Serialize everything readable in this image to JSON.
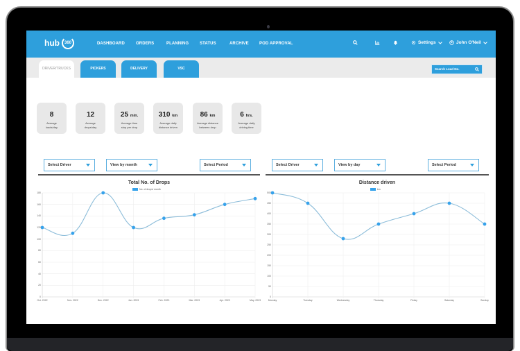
{
  "app": {
    "logo_text": "hub",
    "logo_badge": "360"
  },
  "nav": {
    "items": [
      {
        "label": "DASHBOARD"
      },
      {
        "label": "ORDERS"
      },
      {
        "label": "PLANNING"
      },
      {
        "label": "STATUS"
      },
      {
        "label": "ARCHIVE"
      },
      {
        "label": "POD APPROVAL"
      }
    ],
    "icons": [
      "search-icon",
      "chart-icon",
      "bell-icon"
    ],
    "settings_label": "Settings",
    "user_name": "John O'Neil"
  },
  "tabs": [
    {
      "label": "DRIVER/TRUCKS",
      "active": true
    },
    {
      "label": "PICKERS",
      "active": false
    },
    {
      "label": "DELIVERY",
      "active": false
    },
    {
      "label": "VSC",
      "active": false
    }
  ],
  "search": {
    "placeholder": "Search Load No."
  },
  "kpis": [
    {
      "value": "8",
      "unit": "",
      "label_line1": "Average",
      "label_line2": "loads/day"
    },
    {
      "value": "12",
      "unit": "",
      "label_line1": "Average",
      "label_line2": "drops/day"
    },
    {
      "value": "25",
      "unit": "min.",
      "label_line1": "Average time",
      "label_line2": "stop per drop"
    },
    {
      "value": "310",
      "unit": "km",
      "label_line1": "Average daily",
      "label_line2": "distance driven"
    },
    {
      "value": "86",
      "unit": "km",
      "label_line1": "Average distance",
      "label_line2": "between drop"
    },
    {
      "value": "6",
      "unit": "hrs.",
      "label_line1": "Average daily",
      "label_line2": "driving time"
    }
  ],
  "filters": {
    "left": {
      "driver": "Select Driver",
      "view": "View by month",
      "period": "Select Period"
    },
    "right": {
      "driver": "Select Driver",
      "view": "View by day",
      "period": "Select Period"
    }
  },
  "colors": {
    "brand": "#2e9fdc",
    "series": "#36a2eb",
    "line": "#8bbcd9"
  },
  "chart_data": [
    {
      "type": "line",
      "title": "Total No. of Drops",
      "xlabel": "",
      "ylabel": "",
      "categories": [
        "Oct. 2022",
        "Nov. 2022",
        "Dec. 2022",
        "Jan. 2023",
        "Feb. 2023",
        "Mar. 2023",
        "Apr. 2023",
        "May. 2023"
      ],
      "series": [
        {
          "name": "No. of drops/ month",
          "values": [
            120,
            110,
            180,
            120,
            136,
            142,
            160,
            170
          ]
        }
      ],
      "yticks": [
        0,
        20,
        40,
        60,
        80,
        100,
        120,
        140,
        160,
        180
      ],
      "ylim": [
        0,
        180
      ],
      "grid": true,
      "legend_position": "top"
    },
    {
      "type": "line",
      "title": "Distance driven",
      "xlabel": "",
      "ylabel": "",
      "categories": [
        "Monday",
        "Tuesday",
        "Wednesday",
        "Thursday",
        "Friday",
        "Saturday",
        "Sunday"
      ],
      "series": [
        {
          "name": "km",
          "values": [
            500,
            450,
            280,
            350,
            400,
            450,
            350
          ]
        }
      ],
      "yticks": [
        0,
        50,
        100,
        150,
        200,
        250,
        300,
        350,
        400,
        450,
        500
      ],
      "ylim": [
        0,
        500
      ],
      "grid": true,
      "legend_position": "top"
    }
  ]
}
